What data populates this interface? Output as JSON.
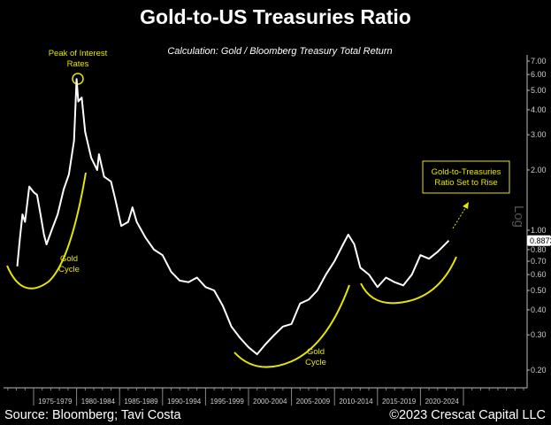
{
  "chart_data": {
    "type": "line",
    "title": "Gold-to-US Treasuries Ratio",
    "subtitle": "Calculation: Gold / Bloomberg Treasury Total Return",
    "ylabel": "Log",
    "y_scale": "log",
    "ylim": [
      0.18,
      7.5
    ],
    "y_ticks": [
      "7.00",
      "6.00",
      "5.00",
      "4.00",
      "3.00",
      "2.00",
      "1.00",
      "0.80",
      "0.70",
      "0.60",
      "0.50",
      "0.40",
      "0.30",
      "0.20"
    ],
    "x_tick_labels": [
      "1975-1979",
      "1980-1984",
      "1985-1989",
      "1990-1994",
      "1995-1999",
      "2000-2004",
      "2005-2009",
      "2010-2014",
      "2015-2019",
      "2020-2024"
    ],
    "last_value_label": "0.8873",
    "grid": false,
    "line_color": "#ffffff",
    "annotation_color": "#e6e600",
    "series": [
      {
        "points": [
          [
            1973.1,
            0.66
          ],
          [
            1973.4,
            0.9
          ],
          [
            1973.7,
            1.2
          ],
          [
            1974.0,
            1.1
          ],
          [
            1974.5,
            1.65
          ],
          [
            1975.0,
            1.55
          ],
          [
            1975.4,
            1.5
          ],
          [
            1975.8,
            1.2
          ],
          [
            1976.2,
            0.95
          ],
          [
            1976.5,
            0.85
          ],
          [
            1977.1,
            1.0
          ],
          [
            1977.8,
            1.2
          ],
          [
            1978.5,
            1.6
          ],
          [
            1979.1,
            1.9
          ],
          [
            1979.7,
            2.8
          ],
          [
            1980.0,
            5.7
          ],
          [
            1980.2,
            4.4
          ],
          [
            1980.6,
            4.6
          ],
          [
            1981.0,
            3.1
          ],
          [
            1981.7,
            2.3
          ],
          [
            1982.4,
            2.0
          ],
          [
            1982.6,
            2.4
          ],
          [
            1983.2,
            1.85
          ],
          [
            1984.0,
            1.75
          ],
          [
            1984.5,
            1.43
          ],
          [
            1985.2,
            1.05
          ],
          [
            1986.0,
            1.1
          ],
          [
            1986.5,
            1.3
          ],
          [
            1987.0,
            1.1
          ],
          [
            1988.0,
            0.92
          ],
          [
            1989.0,
            0.8
          ],
          [
            1990.0,
            0.75
          ],
          [
            1991.0,
            0.62
          ],
          [
            1992.0,
            0.56
          ],
          [
            1993.0,
            0.55
          ],
          [
            1994.0,
            0.58
          ],
          [
            1995.0,
            0.52
          ],
          [
            1996.0,
            0.5
          ],
          [
            1997.0,
            0.42
          ],
          [
            1998.0,
            0.33
          ],
          [
            1999.0,
            0.29
          ],
          [
            2000.0,
            0.26
          ],
          [
            2001.0,
            0.24
          ],
          [
            2002.0,
            0.27
          ],
          [
            2003.0,
            0.3
          ],
          [
            2004.0,
            0.33
          ],
          [
            2005.0,
            0.34
          ],
          [
            2006.0,
            0.43
          ],
          [
            2007.0,
            0.45
          ],
          [
            2008.0,
            0.5
          ],
          [
            2009.0,
            0.6
          ],
          [
            2010.0,
            0.7
          ],
          [
            2011.0,
            0.85
          ],
          [
            2011.6,
            0.95
          ],
          [
            2012.3,
            0.85
          ],
          [
            2013.0,
            0.65
          ],
          [
            2014.0,
            0.6
          ],
          [
            2015.0,
            0.52
          ],
          [
            2016.0,
            0.58
          ],
          [
            2017.0,
            0.55
          ],
          [
            2018.0,
            0.53
          ],
          [
            2019.0,
            0.6
          ],
          [
            2020.0,
            0.75
          ],
          [
            2021.0,
            0.72
          ],
          [
            2022.0,
            0.78
          ],
          [
            2023.3,
            0.8873
          ]
        ]
      }
    ],
    "annotations": {
      "peak": "Peak of Interest Rates",
      "gold_cycle_1": "Gold Cycle",
      "gold_cycle_2": "Gold Cycle",
      "outlook": "Gold-to-Treasuries Ratio Set to Rise"
    }
  },
  "footer": {
    "source": "Source: Bloomberg; Tavi Costa",
    "copyright": "©2023 Crescat Capital LLC"
  }
}
